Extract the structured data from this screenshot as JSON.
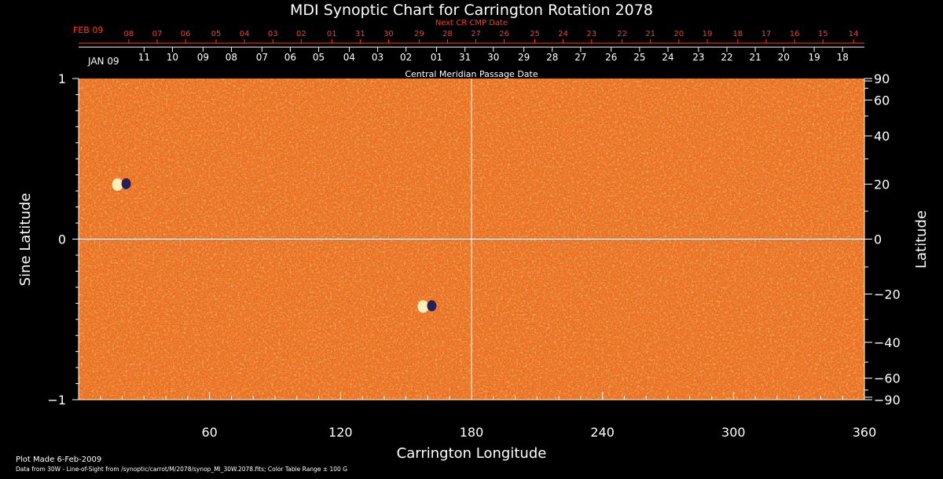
{
  "chart_data": {
    "type": "heatmap",
    "title": "MDI Synoptic Chart for Carrington Rotation 2078",
    "xlabel": "Carrington Longitude",
    "ylabel_left": "Sine Latitude",
    "ylabel_right": "Latitude",
    "xlim": [
      0,
      360
    ],
    "ylim": [
      -1,
      1
    ],
    "x_ticks": [
      60,
      120,
      180,
      240,
      300,
      360
    ],
    "y_ticks_left": [
      {
        "value": 1,
        "label": "1"
      },
      {
        "value": 0,
        "label": "0"
      },
      {
        "value": -1,
        "label": "−1"
      }
    ],
    "y_ticks_right": [
      {
        "deg": 90,
        "label": "90"
      },
      {
        "deg": 60,
        "label": "60"
      },
      {
        "deg": 40,
        "label": "40"
      },
      {
        "deg": 20,
        "label": "20"
      },
      {
        "deg": 0,
        "label": "0"
      },
      {
        "deg": -20,
        "label": "−20"
      },
      {
        "deg": -40,
        "label": "−40"
      },
      {
        "deg": -60,
        "label": "−60"
      },
      {
        "deg": -90,
        "label": "−90"
      }
    ],
    "grid_lines": {
      "x": [
        180
      ],
      "y": [
        0
      ]
    },
    "date_axis_label": "Central Meridian Passage Date",
    "date_axis": {
      "start_label": "JAN 09",
      "ticks": [
        {
          "lon": 30,
          "label": "11"
        },
        {
          "lon": 43,
          "label": "10"
        },
        {
          "lon": 57,
          "label": "09"
        },
        {
          "lon": 70,
          "label": "08"
        },
        {
          "lon": 84,
          "label": "07"
        },
        {
          "lon": 97,
          "label": "06"
        },
        {
          "lon": 110,
          "label": "05"
        },
        {
          "lon": 124,
          "label": "04"
        },
        {
          "lon": 137,
          "label": "03"
        },
        {
          "lon": 150,
          "label": "02"
        },
        {
          "lon": 164,
          "label": "01"
        },
        {
          "lon": 177,
          "label": "31"
        },
        {
          "lon": 190,
          "label": "30"
        },
        {
          "lon": 204,
          "label": "29"
        },
        {
          "lon": 217,
          "label": "28"
        },
        {
          "lon": 230,
          "label": "27"
        },
        {
          "lon": 244,
          "label": "26"
        },
        {
          "lon": 257,
          "label": "25"
        },
        {
          "lon": 270,
          "label": "24"
        },
        {
          "lon": 284,
          "label": "23"
        },
        {
          "lon": 297,
          "label": "22"
        },
        {
          "lon": 310,
          "label": "21"
        },
        {
          "lon": 323,
          "label": "20"
        },
        {
          "lon": 337,
          "label": "19"
        },
        {
          "lon": 350,
          "label": "18"
        }
      ]
    },
    "next_cr_label": "Next CR CMP Date",
    "next_cr_axis": {
      "start_label": "FEB 09",
      "ticks": [
        {
          "lon": 23,
          "label": "08"
        },
        {
          "lon": 36,
          "label": "07"
        },
        {
          "lon": 49,
          "label": "06"
        },
        {
          "lon": 63,
          "label": "05"
        },
        {
          "lon": 76,
          "label": "04"
        },
        {
          "lon": 89,
          "label": "03"
        },
        {
          "lon": 102,
          "label": "02"
        },
        {
          "lon": 116,
          "label": "01"
        },
        {
          "lon": 129,
          "label": "31"
        },
        {
          "lon": 142,
          "label": "30"
        },
        {
          "lon": 156,
          "label": "29"
        },
        {
          "lon": 169,
          "label": "28"
        },
        {
          "lon": 182,
          "label": "27"
        },
        {
          "lon": 195,
          "label": "26"
        },
        {
          "lon": 209,
          "label": "25"
        },
        {
          "lon": 222,
          "label": "24"
        },
        {
          "lon": 235,
          "label": "23"
        },
        {
          "lon": 249,
          "label": "22"
        },
        {
          "lon": 262,
          "label": "21"
        },
        {
          "lon": 275,
          "label": "20"
        },
        {
          "lon": 288,
          "label": "19"
        },
        {
          "lon": 302,
          "label": "18"
        },
        {
          "lon": 315,
          "label": "17"
        },
        {
          "lon": 328,
          "label": "16"
        },
        {
          "lon": 341,
          "label": "15"
        },
        {
          "lon": 355,
          "label": "14"
        }
      ]
    },
    "color_range": "± 100 G",
    "features": [
      {
        "lon": 20,
        "sinlat": 0.34,
        "polarity": "mixed"
      },
      {
        "lon": 160,
        "sinlat": -0.42,
        "polarity": "mixed"
      }
    ]
  },
  "footer": {
    "plot_made": "Plot Made 6-Feb-2009",
    "source_line": "Data from 30W - Line-of-Sight from /synoptic/carrot/M/2078/synop_Ml_30W.2078.fits; Color Table Range ± 100 G"
  },
  "colors": {
    "background": "#000000",
    "map_base": "#e8641a",
    "map_dark": "#b8320c",
    "map_bright": "#ffb040",
    "negative": "#1a1a5a",
    "positive": "#fff4c0",
    "accent_red": "#ff3a1c",
    "text": "#ffffff"
  }
}
